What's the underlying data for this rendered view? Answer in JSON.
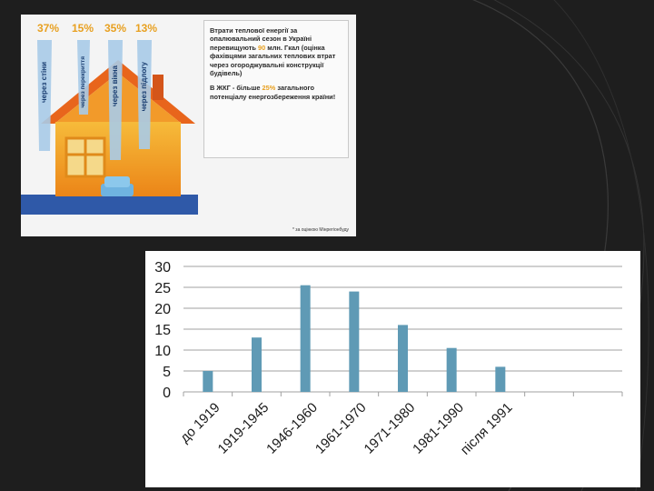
{
  "infographic": {
    "percents": [
      "37%",
      "15%",
      "35%",
      "13%"
    ],
    "ribbons": [
      "через стіни",
      "через перекриття",
      "через вікна",
      "через підлогу"
    ],
    "box": {
      "p1_a": "Втрати теплової енергії за опалювальний сезон в Україні перевищують ",
      "p1_value": "90",
      "p1_b": " млн. Гкал (оцінка фахівцями загальних теплових втрат через огороджувальні конструкції будівель)",
      "p2_a": "В ЖКГ - більше ",
      "p2_value": "25%",
      "p2_b": " загального потенціалу енергозбереження країни!"
    },
    "source": "* за оцінкою Мінрегіонбуду"
  },
  "chart_data": {
    "type": "bar",
    "categories": [
      "до 1919",
      "1919-1945",
      "1946-1960",
      "1961-1970",
      "1971-1980",
      "1981-1990",
      "після 1991"
    ],
    "values": [
      5,
      13,
      25.5,
      24,
      16,
      10.5,
      6
    ],
    "ylim": [
      0,
      30
    ],
    "yticks": [
      0,
      5,
      10,
      15,
      20,
      25,
      30
    ],
    "grid": true,
    "bar_color": "#5f9ab5"
  }
}
